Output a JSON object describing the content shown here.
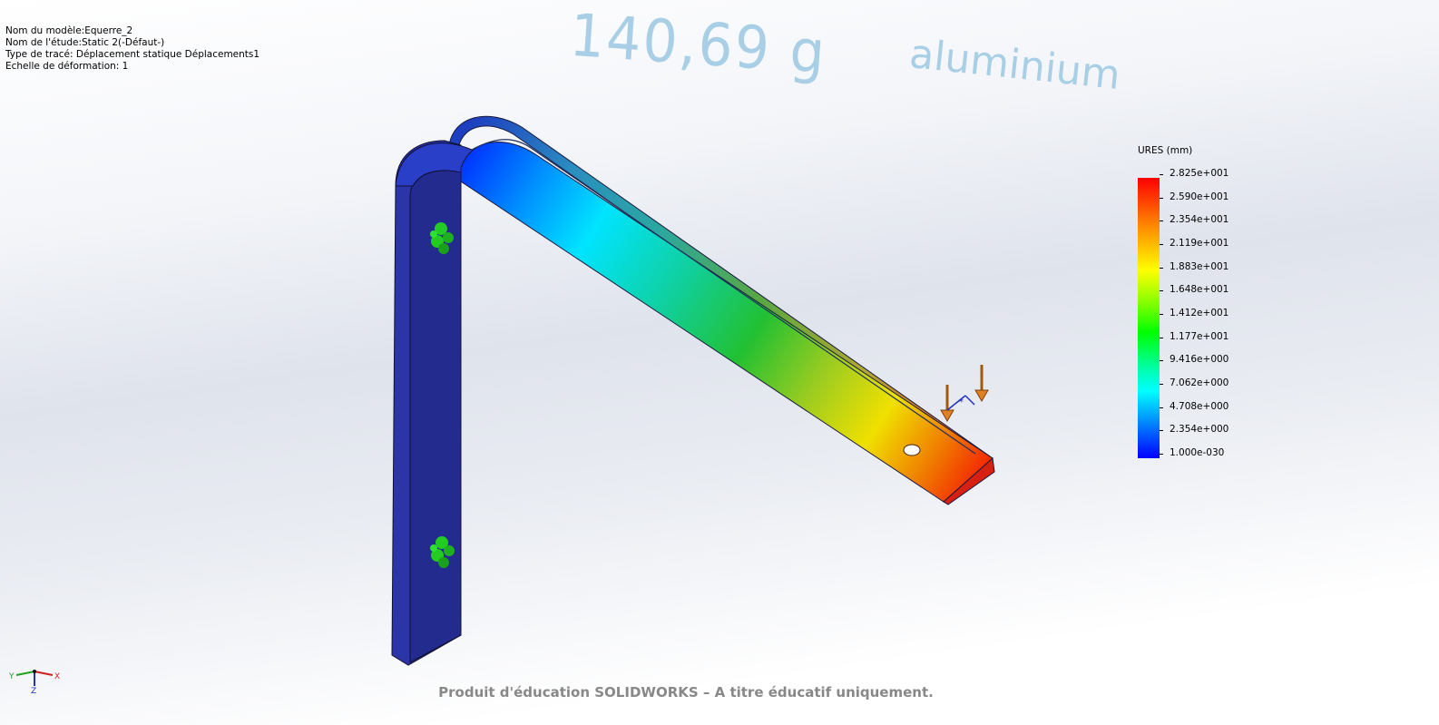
{
  "info": {
    "model_name": "Nom du modèle:Equerre_2",
    "study_name": "Nom de l'étude:Static 2(-Défaut-)",
    "plot_type": "Type de tracé: Déplacement statique Déplacements1",
    "deformation_scale": "Echelle de déformation: 1"
  },
  "legend": {
    "title": "URES (mm)",
    "labels": [
      "2.825e+001",
      "2.590e+001",
      "2.354e+001",
      "2.119e+001",
      "1.883e+001",
      "1.648e+001",
      "1.412e+001",
      "1.177e+001",
      "9.416e+000",
      "7.062e+000",
      "4.708e+000",
      "2.354e+000",
      "1.000e-030"
    ],
    "max_mm": 28.25,
    "min_mm": 0
  },
  "annotations": {
    "mass": "140,69 g",
    "material": "aluminium"
  },
  "watermark": "Produit d'éducation SOLIDWORKS – A titre éducatif uniquement.",
  "triad": {
    "x_label": "X",
    "y_label": "Y",
    "z_label": "Z"
  },
  "colors": {
    "fixture": "#22cc22",
    "load": "#cc7a00",
    "low": "#0000ff",
    "high": "#ff0000"
  }
}
